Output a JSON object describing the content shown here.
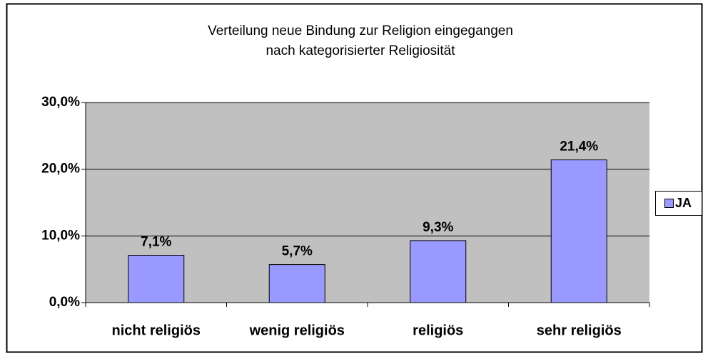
{
  "chart_data": {
    "type": "bar",
    "title_lines": [
      "Verteilung neue Bindung zur Religion eingegangen",
      "nach kategorisierter Religiosität"
    ],
    "categories": [
      "nicht religiös",
      "wenig religiös",
      "religiös",
      "sehr religiös"
    ],
    "series": [
      {
        "name": "JA",
        "color": "#9999ff",
        "values": [
          7.1,
          5.7,
          9.3,
          21.4
        ],
        "value_labels": [
          "7,1%",
          "5,7%",
          "9,3%",
          "21,4%"
        ]
      }
    ],
    "ylim": [
      0,
      30
    ],
    "yticks": [
      {
        "value": 0,
        "label": "0,0%"
      },
      {
        "value": 10,
        "label": "10,0%"
      },
      {
        "value": 20,
        "label": "20,0%"
      },
      {
        "value": 30,
        "label": "30,0%"
      }
    ],
    "grid": true,
    "plot_background": "#c0c0c0",
    "legend": "right"
  }
}
